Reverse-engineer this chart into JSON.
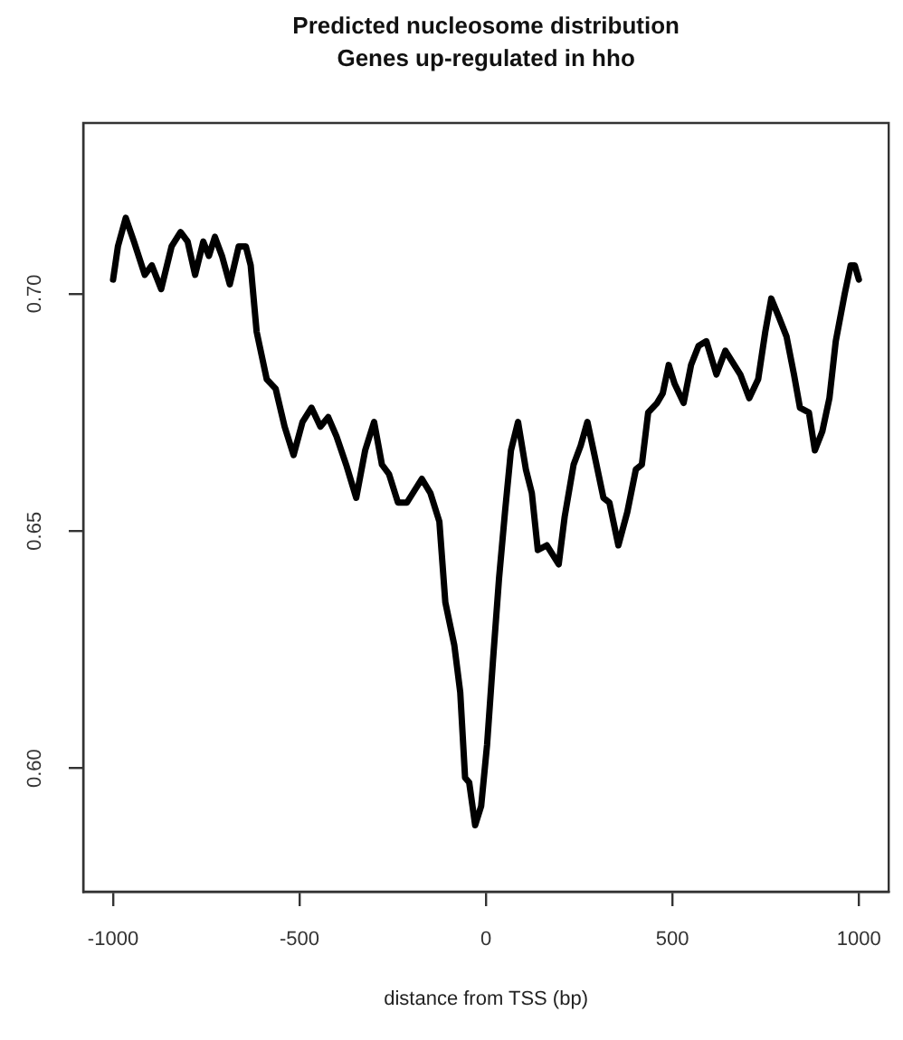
{
  "chart_data": {
    "type": "line",
    "title": "Predicted nucleosome distribution\nGenes up-regulated in hho",
    "xlabel": "distance from TSS (bp)",
    "x": [
      -1000,
      -987,
      -966,
      -944,
      -915,
      -896,
      -871,
      -843,
      -819,
      -800,
      -780,
      -758,
      -743,
      -727,
      -708,
      -687,
      -663,
      -644,
      -631,
      -615,
      -588,
      -564,
      -540,
      -516,
      -492,
      -468,
      -444,
      -423,
      -401,
      -375,
      -348,
      -324,
      -300,
      -279,
      -260,
      -236,
      -212,
      -188,
      -172,
      -149,
      -125,
      -109,
      -85,
      -69,
      -56,
      -45,
      -29,
      -13,
      3,
      19,
      35,
      51,
      67,
      86,
      107,
      123,
      139,
      163,
      179,
      195,
      211,
      235,
      254,
      272,
      291,
      315,
      331,
      355,
      379,
      402,
      418,
      435,
      459,
      474,
      490,
      506,
      530,
      550,
      570,
      591,
      618,
      642,
      666,
      682,
      706,
      730,
      749,
      765,
      786,
      806,
      826,
      842,
      866,
      882,
      902,
      921,
      938,
      962,
      978,
      989,
      1000
    ],
    "series": [
      {
        "color": "#000000",
        "values": [
          0.703,
          0.71,
          0.716,
          0.711,
          0.704,
          0.706,
          0.701,
          0.71,
          0.713,
          0.711,
          0.704,
          0.711,
          0.708,
          0.712,
          0.708,
          0.702,
          0.71,
          0.71,
          0.706,
          0.692,
          0.682,
          0.68,
          0.672,
          0.666,
          0.673,
          0.676,
          0.672,
          0.674,
          0.67,
          0.664,
          0.657,
          0.667,
          0.673,
          0.664,
          0.662,
          0.656,
          0.656,
          0.659,
          0.661,
          0.658,
          0.652,
          0.635,
          0.626,
          0.616,
          0.598,
          0.597,
          0.588,
          0.592,
          0.605,
          0.623,
          0.64,
          0.654,
          0.667,
          0.673,
          0.663,
          0.658,
          0.646,
          0.647,
          0.645,
          0.643,
          0.653,
          0.664,
          0.668,
          0.673,
          0.666,
          0.657,
          0.656,
          0.647,
          0.654,
          0.663,
          0.664,
          0.675,
          0.677,
          0.679,
          0.685,
          0.681,
          0.677,
          0.685,
          0.689,
          0.69,
          0.683,
          0.688,
          0.685,
          0.683,
          0.678,
          0.682,
          0.692,
          0.699,
          0.695,
          0.691,
          0.683,
          0.676,
          0.675,
          0.667,
          0.671,
          0.678,
          0.69,
          0.7,
          0.706,
          0.706,
          0.703
        ]
      }
    ],
    "xlim": [
      -1080,
      1080
    ],
    "xticks": [
      -1000,
      -500,
      0,
      500,
      1000
    ],
    "ylim": [
      0.574,
      0.736
    ],
    "yticks": [
      {
        "value": 0.6,
        "label": "0.60"
      },
      0.65,
      {
        "value": 0.7,
        "label": "0.70"
      }
    ],
    "marker": "none",
    "line_style": "solid"
  }
}
